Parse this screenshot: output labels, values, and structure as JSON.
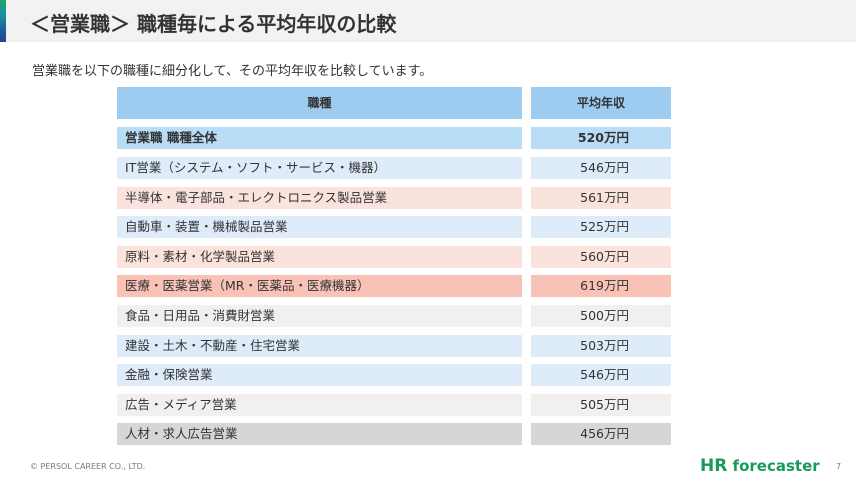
{
  "header": {
    "title": "＜営業職＞ 職種毎による平均年収の比較",
    "subtitle": "営業職を以下の職種に細分化して、その平均年収を比較しています。"
  },
  "table": {
    "columns": [
      "職種",
      "平均年収"
    ],
    "total": {
      "name": "営業職 職種全体",
      "value": "520万円"
    },
    "rows": [
      {
        "name": "IT営業（システム・ソフト・サービス・機器）",
        "value": "546万円",
        "color": "#deebf8"
      },
      {
        "name": "半導体・電子部品・エレクトロニクス製品営業",
        "value": "561万円",
        "color": "#fbe3dd"
      },
      {
        "name": "自動車・装置・機械製品営業",
        "value": "525万円",
        "color": "#deebf8"
      },
      {
        "name": "原料・素材・化学製品営業",
        "value": "560万円",
        "color": "#fbe3dd"
      },
      {
        "name": "医療・医薬営業（MR・医薬品・医療機器）",
        "value": "619万円",
        "color": "#f9c2b6"
      },
      {
        "name": "食品・日用品・消費財営業",
        "value": "500万円",
        "color": "#f0f0f0"
      },
      {
        "name": "建設・土木・不動産・住宅営業",
        "value": "503万円",
        "color": "#deebf8"
      },
      {
        "name": "金融・保険営業",
        "value": "546万円",
        "color": "#deebf8"
      },
      {
        "name": "広告・メディア営業",
        "value": "505万円",
        "color": "#f0f0f0"
      },
      {
        "name": "人材・求人広告営業",
        "value": "456万円",
        "color": "#d6d6d6"
      }
    ]
  },
  "footer": {
    "copyright": "© PERSOL CAREER CO., LTD.",
    "logo_initials": "HR",
    "logo_word": " forecaster",
    "page_number": "7"
  }
}
